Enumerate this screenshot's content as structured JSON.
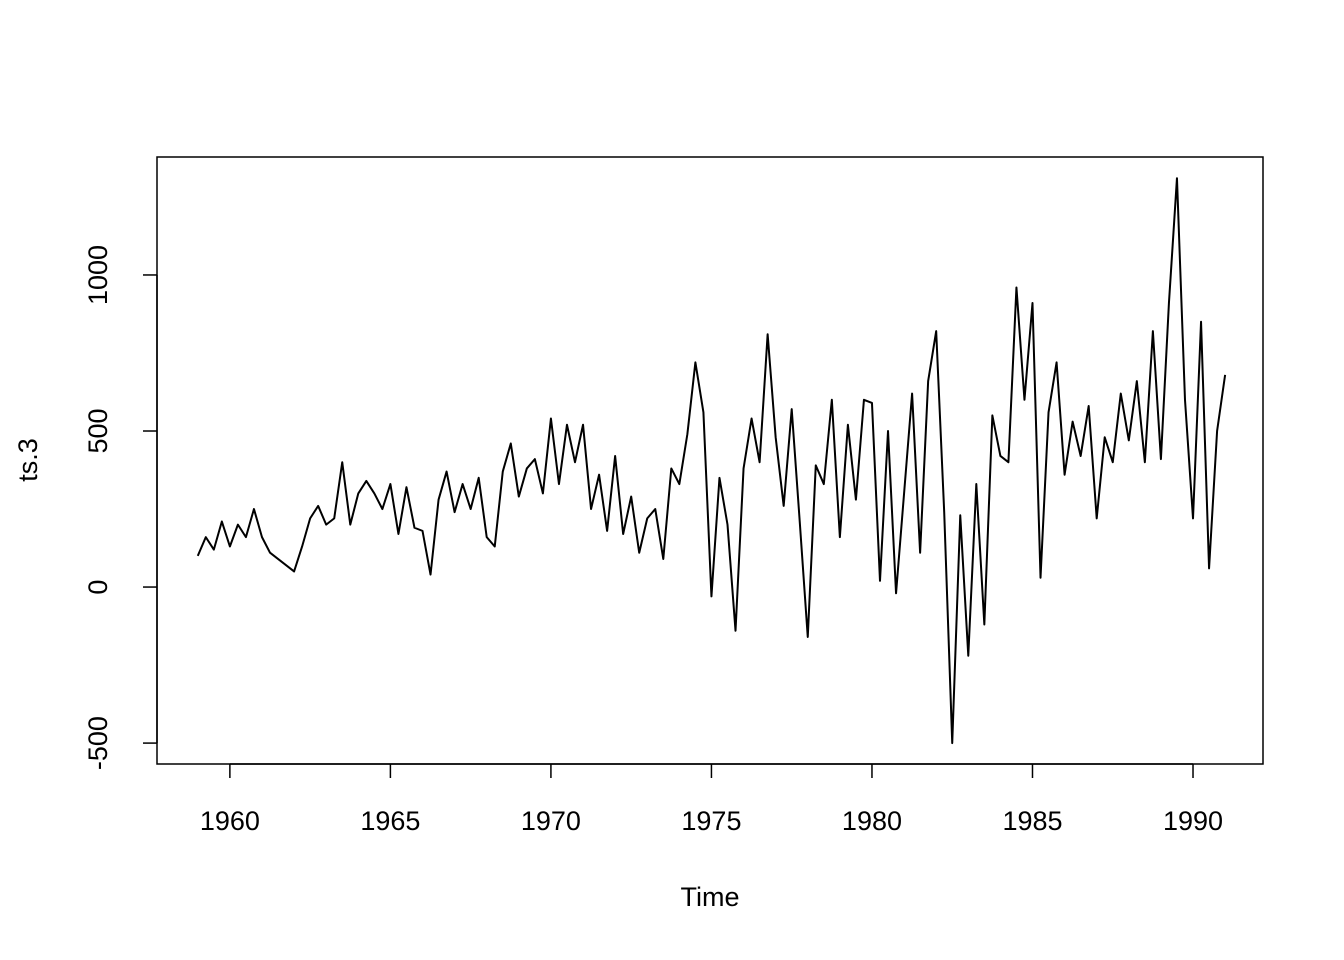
{
  "chart_data": {
    "type": "line",
    "xlabel": "Time",
    "ylabel": "ts.3",
    "color": "#000000",
    "xlim": [
      1957.73,
      1992.18
    ],
    "ylim": [
      -567,
      1378
    ],
    "xticks": [
      1960,
      1965,
      1970,
      1975,
      1980,
      1985,
      1990
    ],
    "yticks": [
      -500,
      0,
      500,
      1000
    ],
    "x": [
      1959,
      1959.25,
      1959.5,
      1959.75,
      1960,
      1960.25,
      1960.5,
      1960.75,
      1961,
      1961.25,
      1961.5,
      1961.75,
      1962,
      1962.25,
      1962.5,
      1962.75,
      1963,
      1963.25,
      1963.5,
      1963.75,
      1964,
      1964.25,
      1964.5,
      1964.75,
      1965,
      1965.25,
      1965.5,
      1965.75,
      1966,
      1966.25,
      1966.5,
      1966.75,
      1967,
      1967.25,
      1967.5,
      1967.75,
      1968,
      1968.25,
      1968.5,
      1968.75,
      1969,
      1969.25,
      1969.5,
      1969.75,
      1970,
      1970.25,
      1970.5,
      1970.75,
      1971,
      1971.25,
      1971.5,
      1971.75,
      1972,
      1972.25,
      1972.5,
      1972.75,
      1973,
      1973.25,
      1973.5,
      1973.75,
      1974,
      1974.25,
      1974.5,
      1974.75,
      1975,
      1975.25,
      1975.5,
      1975.75,
      1976,
      1976.25,
      1976.5,
      1976.75,
      1977,
      1977.25,
      1977.5,
      1977.75,
      1978,
      1978.25,
      1978.5,
      1978.75,
      1979,
      1979.25,
      1979.5,
      1979.75,
      1980,
      1980.25,
      1980.5,
      1980.75,
      1981,
      1981.25,
      1981.5,
      1981.75,
      1982,
      1982.25,
      1982.5,
      1982.75,
      1983,
      1983.25,
      1983.5,
      1983.75,
      1984,
      1984.25,
      1984.5,
      1984.75,
      1985,
      1985.25,
      1985.5,
      1985.75,
      1986,
      1986.25,
      1986.5,
      1986.75,
      1987,
      1987.25,
      1987.5,
      1987.75,
      1988,
      1988.25,
      1988.5,
      1988.75,
      1989,
      1989.25,
      1989.5,
      1989.75,
      1990,
      1990.25,
      1990.5,
      1990.75,
      1991
    ],
    "values": [
      100,
      160,
      120,
      210,
      130,
      200,
      160,
      250,
      160,
      110,
      90,
      70,
      50,
      130,
      220,
      260,
      200,
      220,
      400,
      200,
      300,
      340,
      300,
      250,
      330,
      170,
      320,
      190,
      180,
      40,
      280,
      370,
      240,
      330,
      250,
      350,
      160,
      130,
      370,
      460,
      290,
      380,
      410,
      300,
      540,
      330,
      520,
      400,
      520,
      250,
      360,
      180,
      420,
      170,
      290,
      110,
      220,
      250,
      90,
      380,
      330,
      490,
      720,
      560,
      -30,
      350,
      200,
      -140,
      380,
      540,
      400,
      810,
      480,
      260,
      570,
      210,
      -160,
      390,
      330,
      600,
      160,
      520,
      280,
      600,
      590,
      20,
      500,
      -20,
      300,
      620,
      110,
      660,
      820,
      240,
      -500,
      230,
      -220,
      330,
      -120,
      550,
      420,
      400,
      960,
      600,
      910,
      30,
      560,
      720,
      360,
      530,
      420,
      580,
      220,
      480,
      400,
      620,
      470,
      660,
      400,
      820,
      410,
      910,
      1310,
      600,
      220,
      850,
      60,
      500,
      680
    ]
  }
}
